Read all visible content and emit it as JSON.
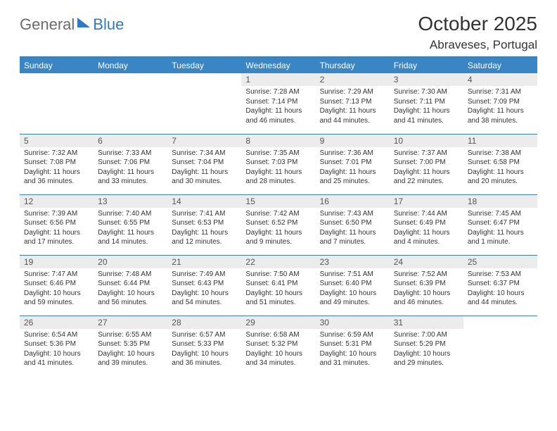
{
  "logo": {
    "part1": "General",
    "part2": "Blue"
  },
  "title": "October 2025",
  "location": "Abraveses, Portugal",
  "colors": {
    "header_bg": "#3a85c4",
    "rule": "#3a7fb8",
    "daynum_bg": "#ececec",
    "logo_gray": "#6b6b6b",
    "logo_blue": "#2f7ac2"
  },
  "weekdays": [
    "Sunday",
    "Monday",
    "Tuesday",
    "Wednesday",
    "Thursday",
    "Friday",
    "Saturday"
  ],
  "weeks": [
    [
      null,
      null,
      null,
      {
        "n": "1",
        "sr": "Sunrise: 7:28 AM",
        "ss": "Sunset: 7:14 PM",
        "d1": "Daylight: 11 hours",
        "d2": "and 46 minutes."
      },
      {
        "n": "2",
        "sr": "Sunrise: 7:29 AM",
        "ss": "Sunset: 7:13 PM",
        "d1": "Daylight: 11 hours",
        "d2": "and 44 minutes."
      },
      {
        "n": "3",
        "sr": "Sunrise: 7:30 AM",
        "ss": "Sunset: 7:11 PM",
        "d1": "Daylight: 11 hours",
        "d2": "and 41 minutes."
      },
      {
        "n": "4",
        "sr": "Sunrise: 7:31 AM",
        "ss": "Sunset: 7:09 PM",
        "d1": "Daylight: 11 hours",
        "d2": "and 38 minutes."
      }
    ],
    [
      {
        "n": "5",
        "sr": "Sunrise: 7:32 AM",
        "ss": "Sunset: 7:08 PM",
        "d1": "Daylight: 11 hours",
        "d2": "and 36 minutes."
      },
      {
        "n": "6",
        "sr": "Sunrise: 7:33 AM",
        "ss": "Sunset: 7:06 PM",
        "d1": "Daylight: 11 hours",
        "d2": "and 33 minutes."
      },
      {
        "n": "7",
        "sr": "Sunrise: 7:34 AM",
        "ss": "Sunset: 7:04 PM",
        "d1": "Daylight: 11 hours",
        "d2": "and 30 minutes."
      },
      {
        "n": "8",
        "sr": "Sunrise: 7:35 AM",
        "ss": "Sunset: 7:03 PM",
        "d1": "Daylight: 11 hours",
        "d2": "and 28 minutes."
      },
      {
        "n": "9",
        "sr": "Sunrise: 7:36 AM",
        "ss": "Sunset: 7:01 PM",
        "d1": "Daylight: 11 hours",
        "d2": "and 25 minutes."
      },
      {
        "n": "10",
        "sr": "Sunrise: 7:37 AM",
        "ss": "Sunset: 7:00 PM",
        "d1": "Daylight: 11 hours",
        "d2": "and 22 minutes."
      },
      {
        "n": "11",
        "sr": "Sunrise: 7:38 AM",
        "ss": "Sunset: 6:58 PM",
        "d1": "Daylight: 11 hours",
        "d2": "and 20 minutes."
      }
    ],
    [
      {
        "n": "12",
        "sr": "Sunrise: 7:39 AM",
        "ss": "Sunset: 6:56 PM",
        "d1": "Daylight: 11 hours",
        "d2": "and 17 minutes."
      },
      {
        "n": "13",
        "sr": "Sunrise: 7:40 AM",
        "ss": "Sunset: 6:55 PM",
        "d1": "Daylight: 11 hours",
        "d2": "and 14 minutes."
      },
      {
        "n": "14",
        "sr": "Sunrise: 7:41 AM",
        "ss": "Sunset: 6:53 PM",
        "d1": "Daylight: 11 hours",
        "d2": "and 12 minutes."
      },
      {
        "n": "15",
        "sr": "Sunrise: 7:42 AM",
        "ss": "Sunset: 6:52 PM",
        "d1": "Daylight: 11 hours",
        "d2": "and 9 minutes."
      },
      {
        "n": "16",
        "sr": "Sunrise: 7:43 AM",
        "ss": "Sunset: 6:50 PM",
        "d1": "Daylight: 11 hours",
        "d2": "and 7 minutes."
      },
      {
        "n": "17",
        "sr": "Sunrise: 7:44 AM",
        "ss": "Sunset: 6:49 PM",
        "d1": "Daylight: 11 hours",
        "d2": "and 4 minutes."
      },
      {
        "n": "18",
        "sr": "Sunrise: 7:45 AM",
        "ss": "Sunset: 6:47 PM",
        "d1": "Daylight: 11 hours",
        "d2": "and 1 minute."
      }
    ],
    [
      {
        "n": "19",
        "sr": "Sunrise: 7:47 AM",
        "ss": "Sunset: 6:46 PM",
        "d1": "Daylight: 10 hours",
        "d2": "and 59 minutes."
      },
      {
        "n": "20",
        "sr": "Sunrise: 7:48 AM",
        "ss": "Sunset: 6:44 PM",
        "d1": "Daylight: 10 hours",
        "d2": "and 56 minutes."
      },
      {
        "n": "21",
        "sr": "Sunrise: 7:49 AM",
        "ss": "Sunset: 6:43 PM",
        "d1": "Daylight: 10 hours",
        "d2": "and 54 minutes."
      },
      {
        "n": "22",
        "sr": "Sunrise: 7:50 AM",
        "ss": "Sunset: 6:41 PM",
        "d1": "Daylight: 10 hours",
        "d2": "and 51 minutes."
      },
      {
        "n": "23",
        "sr": "Sunrise: 7:51 AM",
        "ss": "Sunset: 6:40 PM",
        "d1": "Daylight: 10 hours",
        "d2": "and 49 minutes."
      },
      {
        "n": "24",
        "sr": "Sunrise: 7:52 AM",
        "ss": "Sunset: 6:39 PM",
        "d1": "Daylight: 10 hours",
        "d2": "and 46 minutes."
      },
      {
        "n": "25",
        "sr": "Sunrise: 7:53 AM",
        "ss": "Sunset: 6:37 PM",
        "d1": "Daylight: 10 hours",
        "d2": "and 44 minutes."
      }
    ],
    [
      {
        "n": "26",
        "sr": "Sunrise: 6:54 AM",
        "ss": "Sunset: 5:36 PM",
        "d1": "Daylight: 10 hours",
        "d2": "and 41 minutes."
      },
      {
        "n": "27",
        "sr": "Sunrise: 6:55 AM",
        "ss": "Sunset: 5:35 PM",
        "d1": "Daylight: 10 hours",
        "d2": "and 39 minutes."
      },
      {
        "n": "28",
        "sr": "Sunrise: 6:57 AM",
        "ss": "Sunset: 5:33 PM",
        "d1": "Daylight: 10 hours",
        "d2": "and 36 minutes."
      },
      {
        "n": "29",
        "sr": "Sunrise: 6:58 AM",
        "ss": "Sunset: 5:32 PM",
        "d1": "Daylight: 10 hours",
        "d2": "and 34 minutes."
      },
      {
        "n": "30",
        "sr": "Sunrise: 6:59 AM",
        "ss": "Sunset: 5:31 PM",
        "d1": "Daylight: 10 hours",
        "d2": "and 31 minutes."
      },
      {
        "n": "31",
        "sr": "Sunrise: 7:00 AM",
        "ss": "Sunset: 5:29 PM",
        "d1": "Daylight: 10 hours",
        "d2": "and 29 minutes."
      },
      null
    ]
  ]
}
